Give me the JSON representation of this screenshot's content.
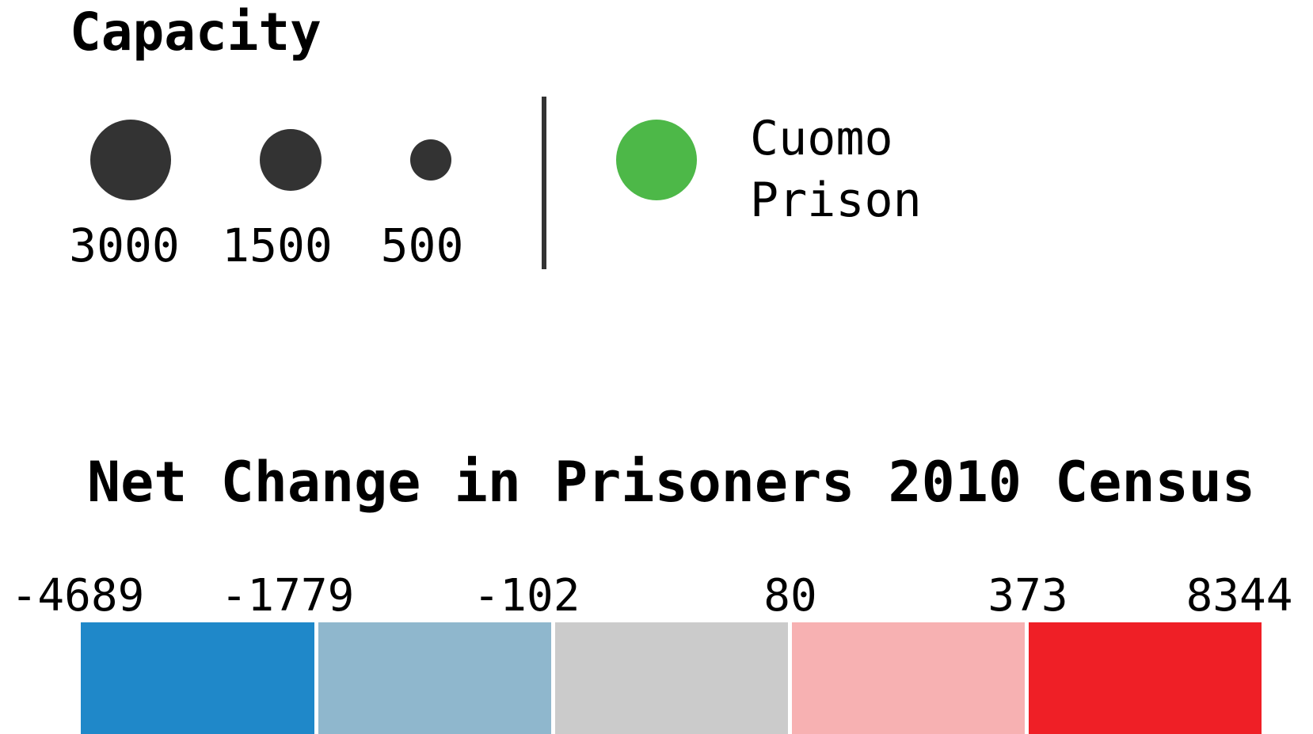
{
  "capacity_legend": {
    "title": "Capacity",
    "sizes": [
      {
        "label": "3000",
        "value": 3000
      },
      {
        "label": "1500",
        "value": 1500
      },
      {
        "label": "500",
        "value": 500
      }
    ],
    "cuomo": {
      "label": "Cuomo\nPrison",
      "color": "#4db848"
    },
    "circle_color": "#333333"
  },
  "net_change_legend": {
    "title": "Net Change in Prisoners 2010 Census",
    "breaks": [
      "-4689",
      "-1779",
      "-102",
      "80",
      "373",
      "8344"
    ],
    "bins": [
      {
        "color": "#1f88c9"
      },
      {
        "color": "#8fb7cd"
      },
      {
        "color": "#cbcbcb"
      },
      {
        "color": "#f7b1b2"
      },
      {
        "color": "#ef1f26"
      }
    ]
  }
}
